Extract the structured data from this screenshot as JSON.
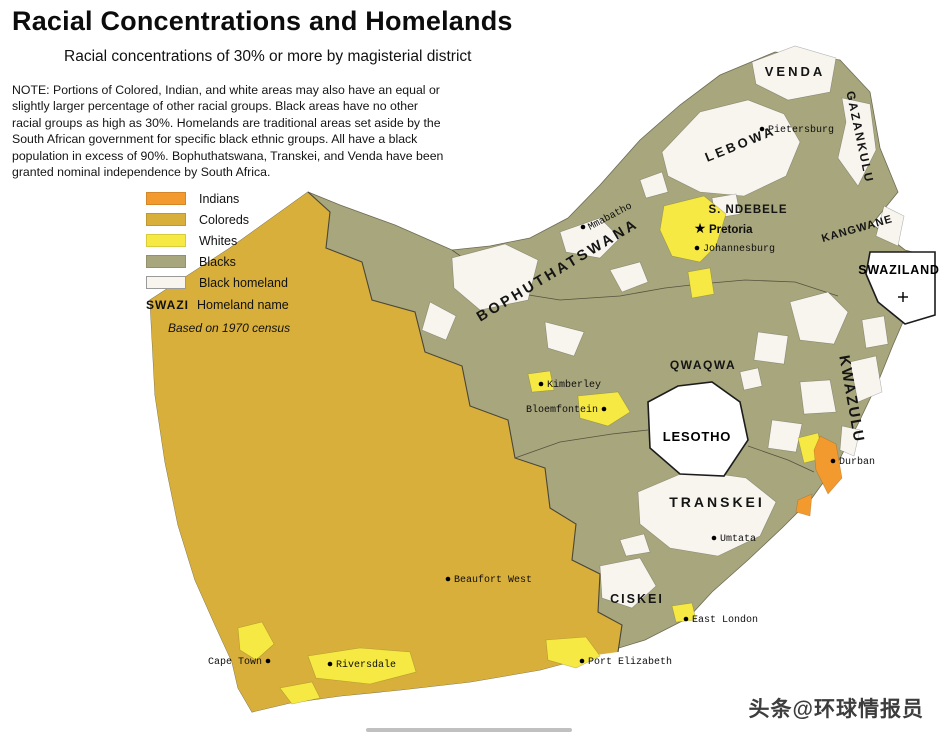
{
  "header": {
    "title": "Racial Concentrations and Homelands",
    "subtitle": "Racial concentrations of 30% or more by magisterial district",
    "note": "NOTE: Portions of Colored, Indian, and white areas may also have an equal or slightly larger percentage of other racial groups. Black areas have no other racial groups as high as 30%. Homelands are traditional areas set aside by the South African government for specific black ethnic groups. All have a black population in excess of 90%. Bophuthatswana, Transkei, and Venda have been granted nominal independence by South Africa."
  },
  "legend": {
    "items": [
      {
        "key": "indians",
        "label": "Indians",
        "color": "#F29A2E"
      },
      {
        "key": "coloreds",
        "label": "Coloreds",
        "color": "#D9AF3B"
      },
      {
        "key": "whites",
        "label": "Whites",
        "color": "#F6E943"
      },
      {
        "key": "blacks",
        "label": "Blacks",
        "color": "#A8A67C"
      },
      {
        "key": "homeland",
        "label": "Black homeland",
        "color": "#F7F5EE"
      }
    ],
    "homeland_key_sample": "SWAZI",
    "homeland_key_label": "Homeland name",
    "source": "Based on 1970 census"
  },
  "map": {
    "homelands": [
      "VENDA",
      "GAZANKULU",
      "LEBOWA",
      "S. NDEBELE",
      "KANGWANE",
      "BOPHUTHATSWANA",
      "QWAQWA",
      "KWAZULU",
      "TRANSKEI",
      "CISKEI"
    ],
    "countries": [
      "SWAZILAND",
      "LESOTHO"
    ],
    "capital": "Pretoria",
    "cities": [
      "Pietersburg",
      "Mmabatho",
      "Pretoria",
      "Johannesburg",
      "Kimberley",
      "Bloemfontein",
      "Durban",
      "Umtata",
      "East London",
      "Beaufort West",
      "Cape Town",
      "Riversdale",
      "Port Elizabeth"
    ]
  },
  "watermark": "头条@环球情报员"
}
